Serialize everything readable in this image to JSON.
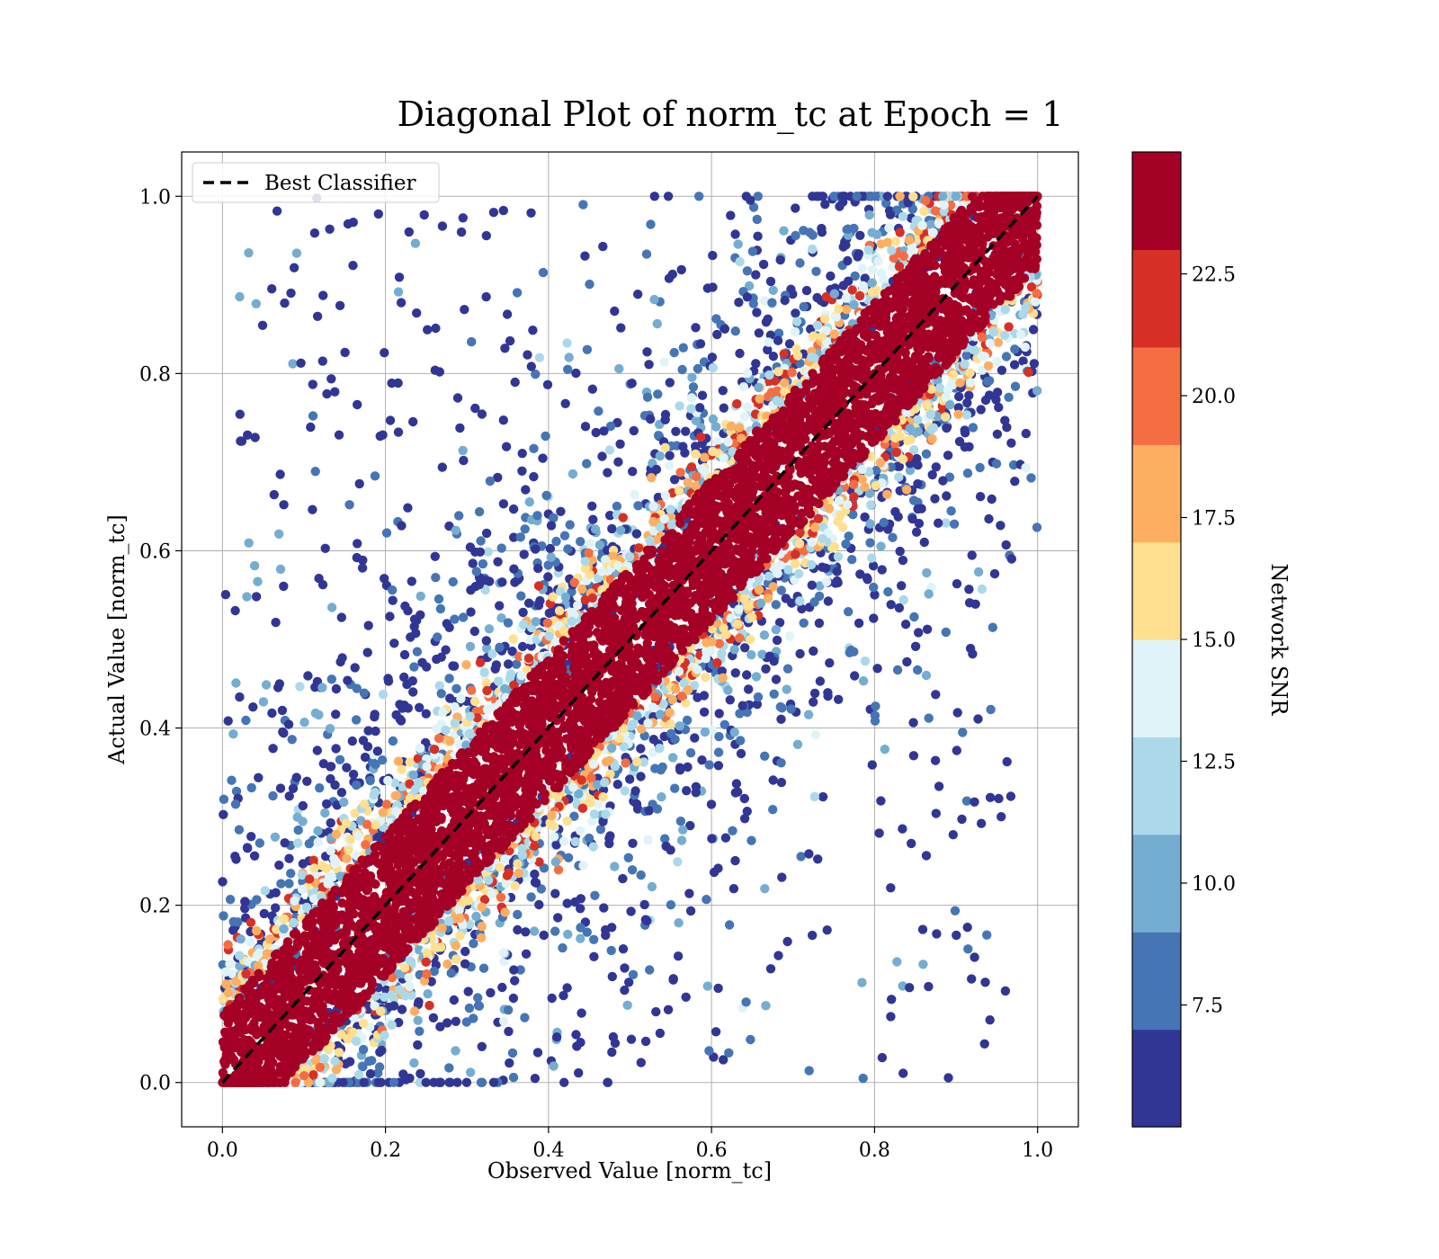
{
  "chart_data": {
    "type": "scatter",
    "title": "Diagonal Plot of norm_tc at Epoch = 1",
    "xlabel": "Observed Value [norm_tc]",
    "ylabel": "Actual Value [norm_tc]",
    "xlim": [
      -0.05,
      1.05
    ],
    "ylim": [
      -0.05,
      1.05
    ],
    "xticks": [
      0.0,
      0.2,
      0.4,
      0.6,
      0.8,
      1.0
    ],
    "yticks": [
      0.0,
      0.2,
      0.4,
      0.6,
      0.8,
      1.0
    ],
    "xtick_labels": [
      "0.0",
      "0.2",
      "0.4",
      "0.6",
      "0.8",
      "1.0"
    ],
    "ytick_labels": [
      "0.0",
      "0.2",
      "0.4",
      "0.6",
      "0.8",
      "1.0"
    ],
    "grid": true,
    "reference_line": {
      "label": "Best Classifier",
      "x": [
        0,
        1
      ],
      "y": [
        0,
        1
      ],
      "style": "dashed",
      "color": "#000000"
    },
    "legend": {
      "placement": "top-left",
      "entries": [
        "Best Classifier"
      ]
    },
    "colorbar": {
      "label": "Network SNR",
      "range": [
        5,
        25
      ],
      "ticks": [
        7.5,
        10.0,
        12.5,
        15.0,
        17.5,
        20.0,
        22.5
      ],
      "tick_labels": [
        "7.5",
        "10.0",
        "12.5",
        "15.0",
        "17.5",
        "20.0",
        "22.5"
      ],
      "levels": [
        5,
        7,
        9,
        11,
        13,
        15,
        17,
        19,
        21,
        23,
        25
      ],
      "colors": [
        "#313695",
        "#4575b4",
        "#74add1",
        "#abd9e9",
        "#e0f3f8",
        "#fee090",
        "#fdae61",
        "#f46d43",
        "#d73027",
        "#a50026"
      ]
    },
    "points_summary": {
      "description_of_distribution": "dense high-SNR band along the diagonal, low-SNR scatter spreading away from it",
      "band_halfwidth_high_snr": 0.08,
      "clip_range": [
        0,
        1
      ]
    }
  }
}
